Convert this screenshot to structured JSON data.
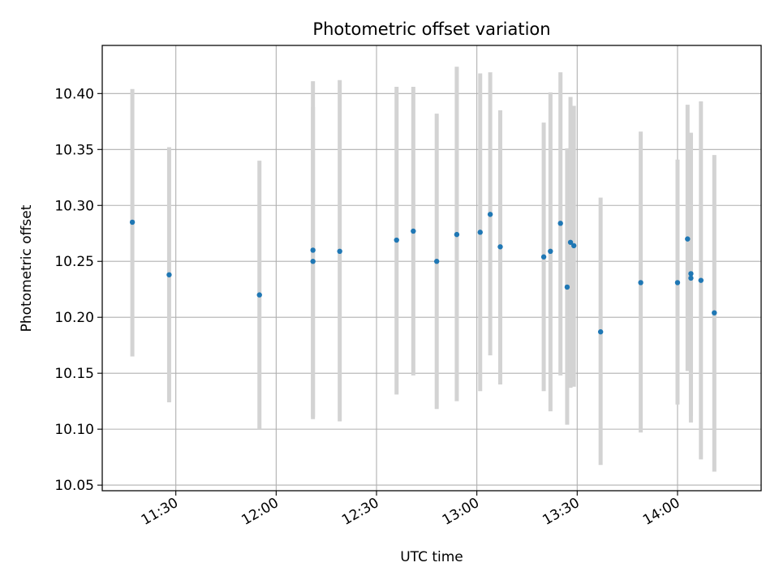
{
  "chart_data": {
    "type": "scatter",
    "title": "Photometric offset variation",
    "xlabel": "UTC time",
    "ylabel": "Photometric offset",
    "x_format": "HH:MM (UTC)",
    "x_ticks": [
      "11:30",
      "12:00",
      "12:30",
      "13:00",
      "13:30",
      "14:00"
    ],
    "y_ticks": [
      "10.05",
      "10.10",
      "10.15",
      "10.20",
      "10.25",
      "10.30",
      "10.35",
      "10.40"
    ],
    "xlim": [
      "11:08",
      "14:25"
    ],
    "ylim": [
      10.045,
      10.443
    ],
    "grid": true,
    "marker_color": "#1f77b4",
    "errorbar_color": "#d3d3d3",
    "points": [
      {
        "time": "11:17",
        "y": 10.285,
        "ylow": 10.165,
        "yhigh": 10.404
      },
      {
        "time": "11:28",
        "y": 10.238,
        "ylow": 10.124,
        "yhigh": 10.352
      },
      {
        "time": "11:55",
        "y": 10.22,
        "ylow": 10.1,
        "yhigh": 10.34
      },
      {
        "time": "12:11",
        "y": 10.25,
        "ylow": 10.111,
        "yhigh": 10.388
      },
      {
        "time": "12:11",
        "y": 10.26,
        "ylow": 10.109,
        "yhigh": 10.411
      },
      {
        "time": "12:19",
        "y": 10.259,
        "ylow": 10.107,
        "yhigh": 10.412
      },
      {
        "time": "12:36",
        "y": 10.269,
        "ylow": 10.131,
        "yhigh": 10.406
      },
      {
        "time": "12:41",
        "y": 10.277,
        "ylow": 10.148,
        "yhigh": 10.406
      },
      {
        "time": "12:48",
        "y": 10.25,
        "ylow": 10.118,
        "yhigh": 10.382
      },
      {
        "time": "12:54",
        "y": 10.274,
        "ylow": 10.125,
        "yhigh": 10.424
      },
      {
        "time": "13:01",
        "y": 10.276,
        "ylow": 10.134,
        "yhigh": 10.418
      },
      {
        "time": "13:04",
        "y": 10.292,
        "ylow": 10.166,
        "yhigh": 10.419
      },
      {
        "time": "13:07",
        "y": 10.263,
        "ylow": 10.14,
        "yhigh": 10.385
      },
      {
        "time": "13:20",
        "y": 10.254,
        "ylow": 10.134,
        "yhigh": 10.374
      },
      {
        "time": "13:22",
        "y": 10.259,
        "ylow": 10.116,
        "yhigh": 10.401
      },
      {
        "time": "13:25",
        "y": 10.284,
        "ylow": 10.148,
        "yhigh": 10.419
      },
      {
        "time": "13:27",
        "y": 10.227,
        "ylow": 10.104,
        "yhigh": 10.351
      },
      {
        "time": "13:28",
        "y": 10.267,
        "ylow": 10.137,
        "yhigh": 10.397
      },
      {
        "time": "13:29",
        "y": 10.264,
        "ylow": 10.138,
        "yhigh": 10.389
      },
      {
        "time": "13:37",
        "y": 10.187,
        "ylow": 10.068,
        "yhigh": 10.307
      },
      {
        "time": "13:49",
        "y": 10.231,
        "ylow": 10.097,
        "yhigh": 10.366
      },
      {
        "time": "14:00",
        "y": 10.231,
        "ylow": 10.122,
        "yhigh": 10.341
      },
      {
        "time": "14:03",
        "y": 10.27,
        "ylow": 10.152,
        "yhigh": 10.39
      },
      {
        "time": "14:04",
        "y": 10.239,
        "ylow": 10.112,
        "yhigh": 10.365
      },
      {
        "time": "14:04",
        "y": 10.235,
        "ylow": 10.106,
        "yhigh": 10.364
      },
      {
        "time": "14:07",
        "y": 10.233,
        "ylow": 10.073,
        "yhigh": 10.393
      },
      {
        "time": "14:11",
        "y": 10.204,
        "ylow": 10.062,
        "yhigh": 10.345
      }
    ]
  }
}
